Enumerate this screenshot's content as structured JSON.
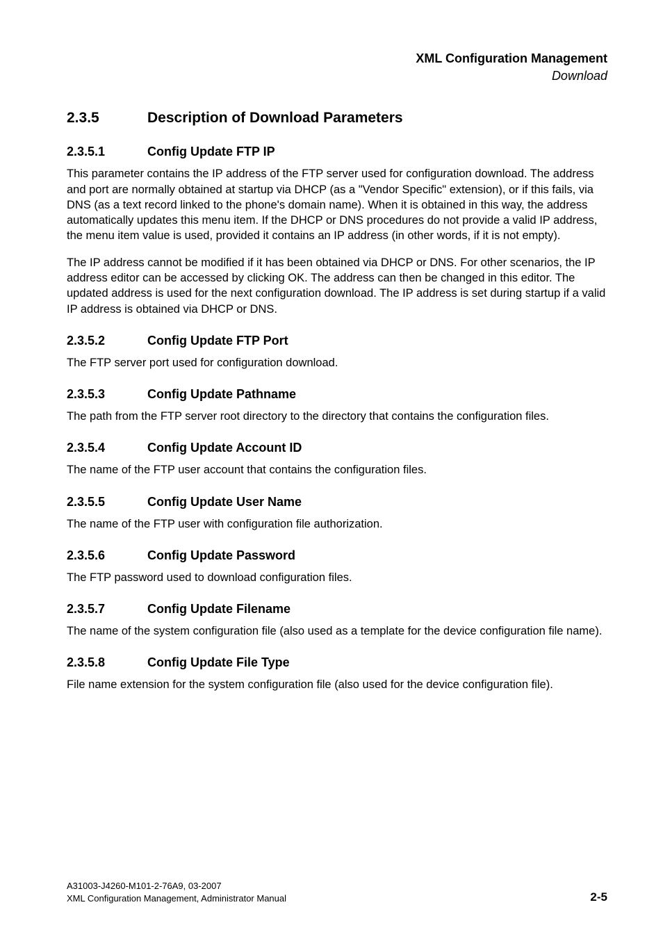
{
  "header": {
    "title": "XML Configuration Management",
    "subtitle": "Download"
  },
  "section": {
    "number": "2.3.5",
    "title": "Description of Download Parameters"
  },
  "subsections": [
    {
      "number": "2.3.5.1",
      "title": "Config Update FTP IP",
      "paragraphs": [
        "This parameter contains the IP address of the FTP server used for configuration download. The address and port are normally obtained at startup via DHCP (as a \"Vendor Specific\" extension), or if this fails, via DNS (as a text record linked to the phone's domain name). When it is obtained in this way, the address automatically updates this menu item. If the DHCP or DNS procedures do not provide a valid IP address, the menu item value is used, provided it contains an IP address (in other words, if it is not empty).",
        "The IP address cannot be modified if it has been obtained via DHCP or DNS. For other scenarios, the IP address editor can be accessed by clicking OK. The address can then be changed in this editor. The updated address is used for the next configuration download. The IP address is set during startup if a valid IP address is obtained via DHCP or DNS."
      ]
    },
    {
      "number": "2.3.5.2",
      "title": "Config Update FTP Port",
      "paragraphs": [
        "The FTP server port used for configuration download."
      ]
    },
    {
      "number": "2.3.5.3",
      "title": "Config Update Pathname",
      "paragraphs": [
        "The path from the FTP server root directory to the directory that contains the configuration files."
      ]
    },
    {
      "number": "2.3.5.4",
      "title": "Config Update Account ID",
      "paragraphs": [
        "The name of the FTP user account that contains the configuration files."
      ]
    },
    {
      "number": "2.3.5.5",
      "title": "Config Update User Name",
      "paragraphs": [
        "The name of the FTP user with configuration file authorization."
      ]
    },
    {
      "number": "2.3.5.6",
      "title": "Config Update Password",
      "paragraphs": [
        "The FTP password used to download configuration files."
      ]
    },
    {
      "number": "2.3.5.7",
      "title": "Config Update Filename",
      "paragraphs": [
        "The name of the system configuration file (also used as a template for the device configuration file name)."
      ]
    },
    {
      "number": "2.3.5.8",
      "title": "Config Update File Type",
      "paragraphs": [
        "File name extension for the system configuration file (also used for the device configuration file)."
      ]
    }
  ],
  "footer": {
    "line1": "A31003-J4260-M101-2-76A9, 03-2007",
    "line2": "XML Configuration Management, Administrator Manual",
    "page": "2-5"
  }
}
